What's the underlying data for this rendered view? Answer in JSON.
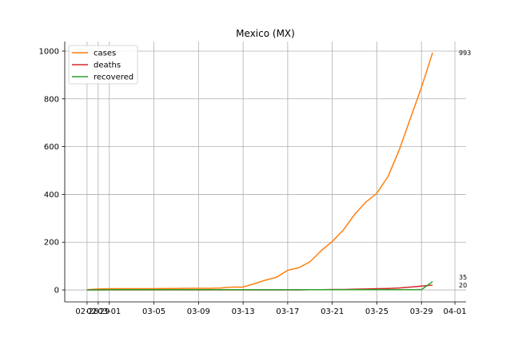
{
  "chart_data": {
    "type": "line",
    "title": "Mexico (MX)",
    "xlabel": "",
    "ylabel": "",
    "x": [
      "02-28",
      "02-29",
      "03-01",
      "03-02",
      "03-03",
      "03-04",
      "03-05",
      "03-06",
      "03-07",
      "03-08",
      "03-09",
      "03-10",
      "03-11",
      "03-12",
      "03-13",
      "03-14",
      "03-15",
      "03-16",
      "03-17",
      "03-18",
      "03-19",
      "03-20",
      "03-21",
      "03-22",
      "03-23",
      "03-24",
      "03-25",
      "03-26",
      "03-27",
      "03-28",
      "03-29",
      "03-30",
      "03-31"
    ],
    "x_ticks": [
      "02-28",
      "02-29",
      "03-01",
      "03-05",
      "03-09",
      "03-13",
      "03-17",
      "03-21",
      "03-25",
      "03-29",
      "04-01"
    ],
    "xlim": [
      "02-26",
      "04-02"
    ],
    "ylim": [
      -50,
      1040
    ],
    "y_ticks": [
      0,
      200,
      400,
      600,
      800,
      1000
    ],
    "grid": true,
    "legend_position": "top-left",
    "series": [
      {
        "name": "cases",
        "color": "#ff7f0e",
        "values": [
          1,
          4,
          5,
          5,
          5,
          5,
          5,
          6,
          6,
          7,
          7,
          7,
          8,
          12,
          12,
          26,
          41,
          53,
          82,
          93,
          118,
          164,
          203,
          251,
          316,
          367,
          405,
          475,
          585,
          717,
          848,
          993,
          null
        ]
      },
      {
        "name": "deaths",
        "color": "#d62728",
        "values": [
          0,
          0,
          0,
          0,
          0,
          0,
          0,
          0,
          0,
          0,
          0,
          0,
          0,
          0,
          0,
          0,
          0,
          0,
          0,
          0,
          1,
          1,
          2,
          2,
          3,
          4,
          5,
          6,
          8,
          12,
          16,
          20,
          null
        ]
      },
      {
        "name": "recovered",
        "color": "#2ca02c",
        "values": [
          0,
          0,
          1,
          1,
          1,
          1,
          1,
          1,
          1,
          1,
          1,
          1,
          1,
          1,
          1,
          1,
          1,
          1,
          1,
          1,
          1,
          1,
          1,
          1,
          1,
          1,
          1,
          1,
          1,
          1,
          1,
          35,
          null
        ]
      }
    ],
    "end_labels": [
      {
        "series": "cases",
        "text": "993",
        "value": 993
      },
      {
        "series": "recovered",
        "text": "35",
        "value": 35
      },
      {
        "series": "deaths",
        "text": "20",
        "value": 20
      }
    ]
  }
}
